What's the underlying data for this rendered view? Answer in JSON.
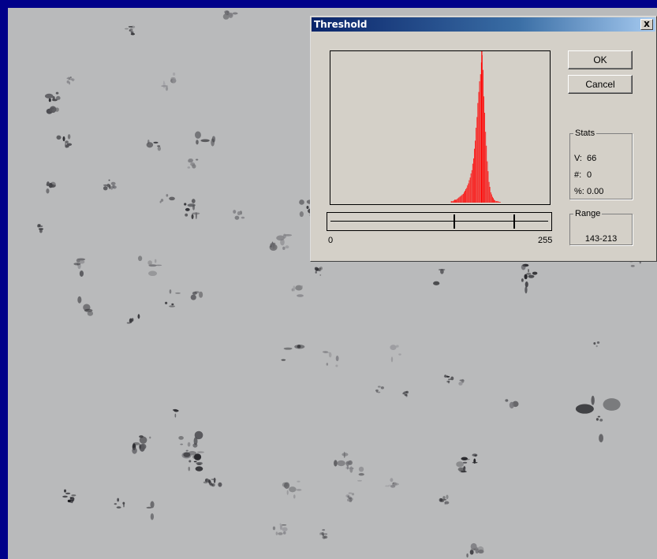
{
  "dialog": {
    "title": "Threshold",
    "close_label": "x",
    "ok_label": "OK",
    "cancel_label": "Cancel",
    "axis_min_label": "0",
    "axis_max_label": "255",
    "stats": {
      "legend": "Stats",
      "v_key": "V:",
      "v_value": "66",
      "count_key": "#:",
      "count_value": "0",
      "percent_key": "%:",
      "percent_value": "0.00"
    },
    "range": {
      "legend": "Range",
      "value": "143-213",
      "lower": 143,
      "upper": 213
    }
  },
  "chart_data": {
    "type": "bar",
    "title": "",
    "xlim": [
      0,
      255
    ],
    "color": "#ff0000",
    "peak_x": 176,
    "x": [
      140,
      142,
      144,
      146,
      148,
      150,
      152,
      154,
      156,
      158,
      160,
      162,
      164,
      166,
      168,
      170,
      172,
      174,
      175,
      176,
      177,
      178,
      180,
      182,
      184,
      186,
      188,
      190,
      192,
      194,
      196
    ],
    "values": [
      0.01,
      0.01,
      0.02,
      0.02,
      0.03,
      0.04,
      0.05,
      0.06,
      0.08,
      0.1,
      0.13,
      0.17,
      0.22,
      0.3,
      0.42,
      0.58,
      0.75,
      0.87,
      0.95,
      1.0,
      0.9,
      0.72,
      0.48,
      0.28,
      0.14,
      0.07,
      0.04,
      0.02,
      0.01,
      0.01,
      0.005
    ]
  },
  "colors": {
    "desktop": "#00008a",
    "image_bg": "#b9babb",
    "dialog_bg": "#d4d0c8",
    "title_start": "#0a246a",
    "histogram": "#ff0000"
  }
}
